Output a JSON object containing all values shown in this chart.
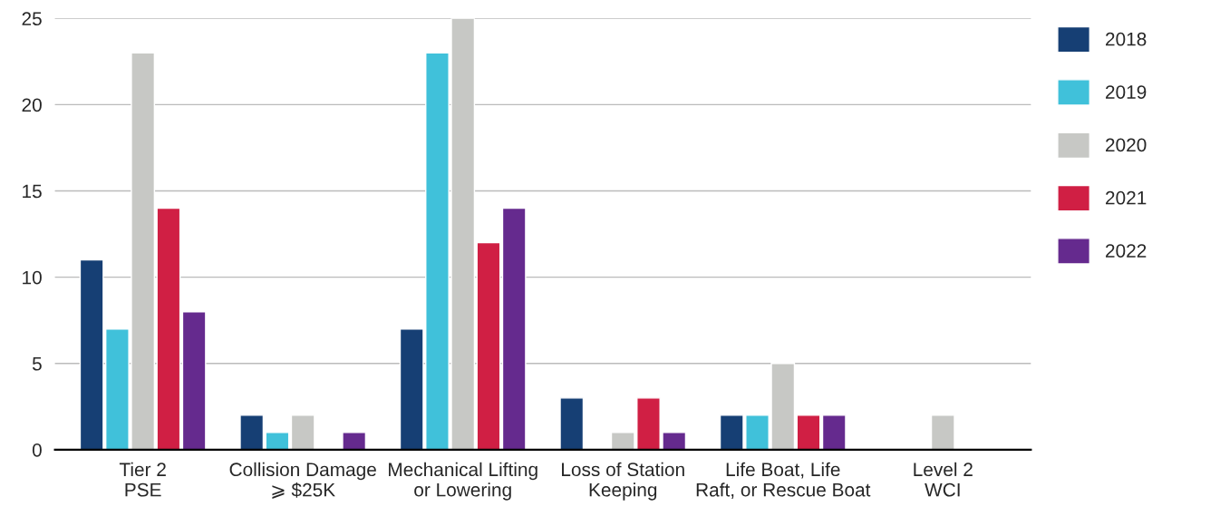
{
  "chart_data": {
    "type": "bar",
    "categories": [
      "Tier 2\nPSE",
      "Collision Damage\n⩾ $25K",
      "Mechanical Lifting\nor Lowering",
      "Loss of Station\nKeeping",
      "Life Boat, Life\nRaft, or Rescue Boat",
      "Level 2\nWCI"
    ],
    "series": [
      {
        "name": "2018",
        "color": "#163f74",
        "values": [
          11,
          2,
          7,
          3,
          2,
          null
        ]
      },
      {
        "name": "2019",
        "color": "#40c1da",
        "values": [
          7,
          1,
          23,
          null,
          2,
          null
        ]
      },
      {
        "name": "2020",
        "color": "#c7c8c5",
        "values": [
          23,
          2,
          25,
          1,
          5,
          2
        ]
      },
      {
        "name": "2021",
        "color": "#d01f44",
        "values": [
          14,
          null,
          12,
          3,
          2,
          null
        ]
      },
      {
        "name": "2022",
        "color": "#652a8e",
        "values": [
          8,
          1,
          14,
          1,
          2,
          null
        ]
      }
    ],
    "ylim": [
      0,
      25
    ],
    "yticks": [
      0,
      5,
      10,
      15,
      20,
      25
    ],
    "grid": "y",
    "legend": "right"
  }
}
